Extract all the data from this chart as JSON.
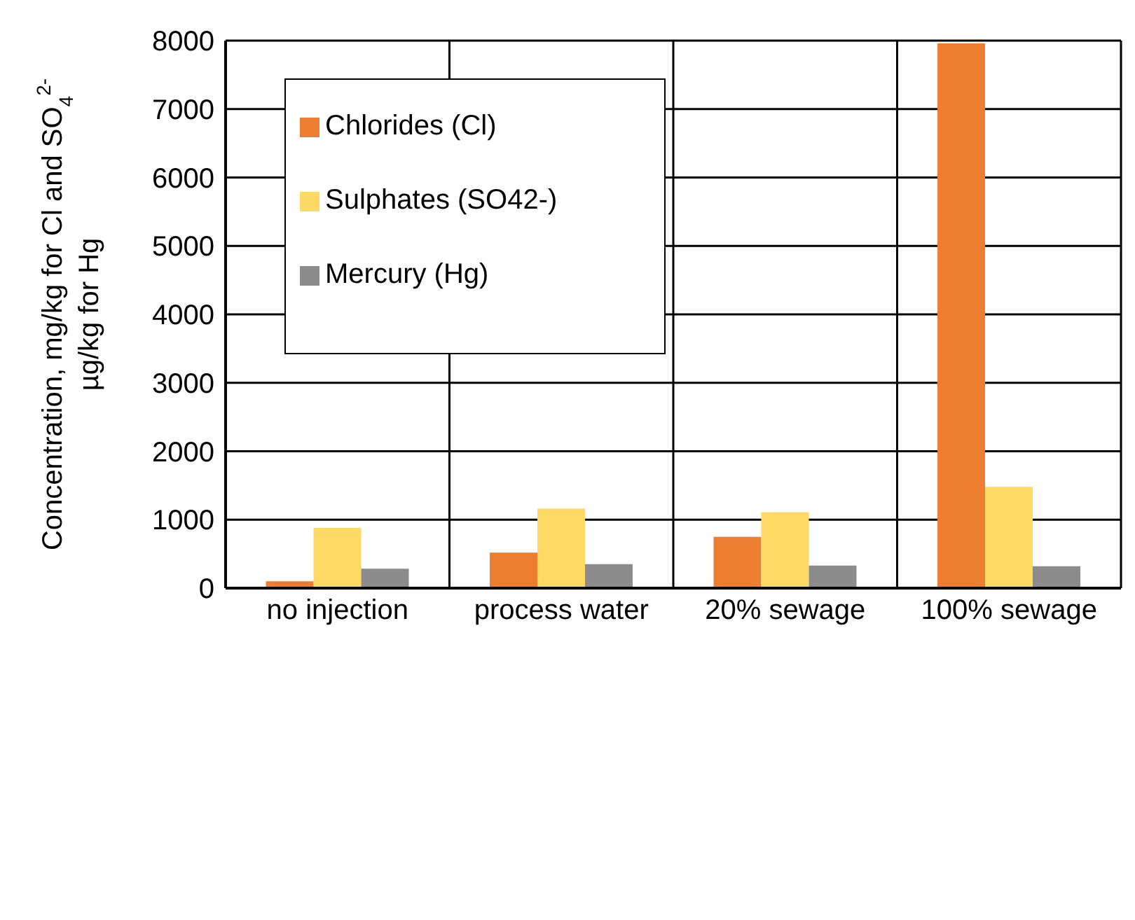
{
  "chart_data": {
    "type": "bar",
    "ylabel": "Concentration, mg/kg for Cl and SO$_{4}$$^{2-}$\nµg/kg for Hg",
    "categories": [
      "no injection",
      "process water",
      "20% sewage",
      "100% sewage"
    ],
    "series": [
      {
        "name": "Chlorides (Cl)",
        "color": "#ed7d31",
        "values": [
          100,
          520,
          750,
          7960
        ]
      },
      {
        "name": "Sulphates (SO42-)",
        "color": "#ffd966",
        "values": [
          880,
          1160,
          1110,
          1480
        ]
      },
      {
        "name": "Mercury (Hg)",
        "color": "#8c8c8c",
        "values": [
          285,
          350,
          330,
          320
        ]
      }
    ],
    "ylim": [
      0,
      8000
    ],
    "yticks": [
      0,
      1000,
      2000,
      3000,
      4000,
      5000,
      6000,
      7000,
      8000
    ],
    "grid": true,
    "legend": "top left"
  }
}
